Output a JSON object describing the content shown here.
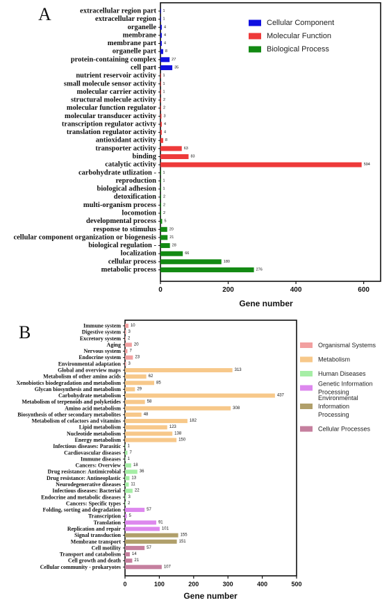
{
  "chart_data": [
    {
      "type": "bar",
      "orientation": "horizontal",
      "panel_label": "A",
      "xlabel": "Gene number",
      "xlim": [
        0,
        650
      ],
      "xticks": [
        0,
        200,
        400,
        600
      ],
      "grid": false,
      "legend_position": "top-right",
      "legend": [
        {
          "label": "Cellular Component",
          "color": "#1010e0"
        },
        {
          "label": "Molecular Function",
          "color": "#ee3a3a"
        },
        {
          "label": "Biological Process",
          "color": "#138a13"
        }
      ],
      "items": [
        {
          "label": "extracellular region part",
          "value": 1,
          "group": 0
        },
        {
          "label": "extracellular region",
          "value": 1,
          "group": 0
        },
        {
          "label": "organelle",
          "value": 4,
          "group": 0
        },
        {
          "label": "membrane",
          "value": 4,
          "group": 0
        },
        {
          "label": "membrane part",
          "value": 4,
          "group": 0
        },
        {
          "label": "organelle part",
          "value": 8,
          "group": 0
        },
        {
          "label": "protein-containing complex",
          "value": 27,
          "group": 0
        },
        {
          "label": "cell part",
          "value": 35,
          "group": 0
        },
        {
          "label": "nutrient reservoir activity",
          "value": 1,
          "group": 1
        },
        {
          "label": "small molecule sensor activity",
          "value": 1,
          "group": 1
        },
        {
          "label": "molecular carrier activity",
          "value": 1,
          "group": 1
        },
        {
          "label": "structural molecule activity",
          "value": 2,
          "group": 1
        },
        {
          "label": "molecular function regulator",
          "value": 2,
          "group": 1
        },
        {
          "label": "molecular transducer activity",
          "value": 3,
          "group": 1
        },
        {
          "label": "transcription regulator activty",
          "value": 4,
          "group": 1
        },
        {
          "label": "translation regulator activity",
          "value": 4,
          "group": 1
        },
        {
          "label": "antioxidant activity",
          "value": 8,
          "group": 1
        },
        {
          "label": "transporter activity",
          "value": 63,
          "group": 1
        },
        {
          "label": "binding",
          "value": 83,
          "group": 1
        },
        {
          "label": "catalytic activity",
          "value": 594,
          "group": 1
        },
        {
          "label": "carbohydrate utlization -",
          "value": 1,
          "group": 2
        },
        {
          "label": "reproduction",
          "value": 1,
          "group": 2
        },
        {
          "label": "biological adhesion",
          "value": 1,
          "group": 2
        },
        {
          "label": "detoxification",
          "value": 2,
          "group": 2
        },
        {
          "label": "multi-organism process",
          "value": 2,
          "group": 2
        },
        {
          "label": "locomotion",
          "value": 2,
          "group": 2
        },
        {
          "label": "developmental process",
          "value": 5,
          "group": 2
        },
        {
          "label": "response to stimulus",
          "value": 20,
          "group": 2
        },
        {
          "label": "cellular component organization or biogenesis",
          "value": 21,
          "group": 2
        },
        {
          "label": "biological regulation -",
          "value": 28,
          "group": 2
        },
        {
          "label": "localization",
          "value": 66,
          "group": 2
        },
        {
          "label": "cellular process",
          "value": 180,
          "group": 2
        },
        {
          "label": "metabolic process",
          "value": 276,
          "group": 2
        }
      ]
    },
    {
      "type": "bar",
      "orientation": "horizontal",
      "panel_label": "B",
      "xlabel": "Gene number",
      "xlim": [
        0,
        500
      ],
      "xticks": [
        0,
        100,
        200,
        300,
        400,
        500
      ],
      "grid": false,
      "legend_position": "right",
      "legend": [
        {
          "label": "Organismal Systems",
          "color": "#f2a0a0"
        },
        {
          "label": "Metabolism",
          "color": "#f7c88a"
        },
        {
          "label": "Human Diseases",
          "color": "#a6eea6"
        },
        {
          "label": "Genetic Information Processing",
          "color": "#dd88ee"
        },
        {
          "label": "Environmental Information Processing",
          "color": "#b09f6a"
        },
        {
          "label": "Cellular Processes",
          "color": "#c57f9e"
        }
      ],
      "items": [
        {
          "label": "Immune system",
          "value": 10,
          "group": 0
        },
        {
          "label": "Digestive system",
          "value": 3,
          "group": 0
        },
        {
          "label": "Excretory system",
          "value": 2,
          "group": 0
        },
        {
          "label": "Aging",
          "value": 20,
          "group": 0
        },
        {
          "label": "Nervous system",
          "value": 7,
          "group": 0
        },
        {
          "label": "Endocrine system",
          "value": 23,
          "group": 0
        },
        {
          "label": "Environmental adaptation",
          "value": 3,
          "group": 0
        },
        {
          "label": "Global and overview maps",
          "value": 313,
          "group": 1
        },
        {
          "label": "Metabolism of other amino acids",
          "value": 62,
          "group": 1
        },
        {
          "label": "Xenobiotics biodegradation and metabolism",
          "value": 85,
          "group": 1
        },
        {
          "label": "Glycan biosynthesis and metabolism",
          "value": 29,
          "group": 1
        },
        {
          "label": "Carbohydrate metabolism",
          "value": 437,
          "group": 1
        },
        {
          "label": "Metabolism of terpenoids and polyketides",
          "value": 58,
          "group": 1
        },
        {
          "label": "Amino acid metabolism",
          "value": 308,
          "group": 1
        },
        {
          "label": "Biosynthesis of other secondary metabolites",
          "value": 48,
          "group": 1
        },
        {
          "label": "Metabolism of cofactors and vitamins",
          "value": 182,
          "group": 1
        },
        {
          "label": "Lipid metabolism",
          "value": 123,
          "group": 1
        },
        {
          "label": "Nucleotide metabolism",
          "value": 138,
          "group": 1
        },
        {
          "label": "Energy metabolism",
          "value": 150,
          "group": 1
        },
        {
          "label": "Infectious diseases: Parasitic",
          "value": 1,
          "group": 2
        },
        {
          "label": "Cardiovascular diseases",
          "value": 7,
          "group": 2
        },
        {
          "label": "Immune diseases",
          "value": 1,
          "group": 2
        },
        {
          "label": "Cancers: Overview",
          "value": 18,
          "group": 2
        },
        {
          "label": "Drug resistance: Antimicrobial",
          "value": 36,
          "group": 2
        },
        {
          "label": "Drug resistance: Antineoplastic",
          "value": 13,
          "group": 2
        },
        {
          "label": "Neurodegenerative diseases",
          "value": 11,
          "group": 2
        },
        {
          "label": "Infectious diseases: Bacterial",
          "value": 22,
          "group": 2
        },
        {
          "label": "Endocrine and metabolic diseases",
          "value": 3,
          "group": 2
        },
        {
          "label": "Cancers: Specific types",
          "value": 2,
          "group": 2
        },
        {
          "label": "Folding, sorting and degradation",
          "value": 57,
          "group": 3
        },
        {
          "label": "Transcription",
          "value": 5,
          "group": 3
        },
        {
          "label": "Translation",
          "value": 91,
          "group": 3
        },
        {
          "label": "Replication and repair",
          "value": 101,
          "group": 3
        },
        {
          "label": "Signal transduction",
          "value": 155,
          "group": 4
        },
        {
          "label": "Membrane transport",
          "value": 151,
          "group": 4
        },
        {
          "label": "Cell motility",
          "value": 57,
          "group": 5
        },
        {
          "label": "Transport and catabolism",
          "value": 14,
          "group": 5
        },
        {
          "label": "Cell growth and death",
          "value": 21,
          "group": 5
        },
        {
          "label": "Cellular community - prokaryotes",
          "value": 107,
          "group": 5
        }
      ]
    }
  ]
}
